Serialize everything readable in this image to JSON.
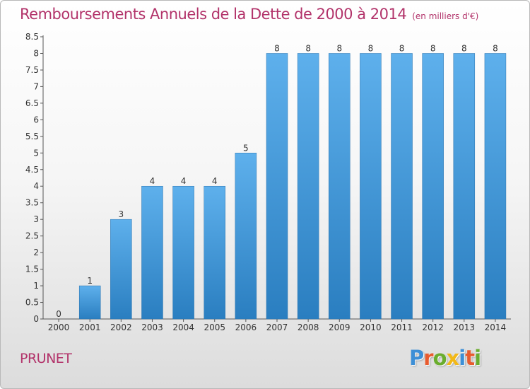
{
  "header": {
    "title": "Remboursements Annuels de la Dette de 2000 à 2014",
    "unit": "(en milliers d'€)"
  },
  "footer": {
    "commune": "PRUNET",
    "logo": {
      "letters": [
        "P",
        "r",
        "o",
        "x",
        "i",
        "t",
        "i"
      ],
      "colors": [
        "#3d8fd6",
        "#e85b2e",
        "#6aad2e",
        "#f2b817",
        "#3d8fd6",
        "#e85b2e",
        "#6aad2e"
      ]
    }
  },
  "colors": {
    "bar_light": "#5eb0ec",
    "bar_dark": "#2a7ec0",
    "axis": "#555555",
    "grid": "#cccccc"
  },
  "chart_data": {
    "type": "bar",
    "title": "Remboursements Annuels de la Dette de 2000 à 2014",
    "subtitle": "(en milliers d'€)",
    "xlabel": "",
    "ylabel": "",
    "categories": [
      "2000",
      "2001",
      "2002",
      "2003",
      "2004",
      "2005",
      "2006",
      "2007",
      "2008",
      "2009",
      "2010",
      "2011",
      "2012",
      "2013",
      "2014"
    ],
    "values": [
      0,
      1,
      3,
      4,
      4,
      4,
      5,
      8,
      8,
      8,
      8,
      8,
      8,
      8,
      8
    ],
    "data_labels": [
      "0",
      "1",
      "3",
      "4",
      "4",
      "4",
      "5",
      "8",
      "8",
      "8",
      "8",
      "8",
      "8",
      "8",
      "8"
    ],
    "ylim": [
      0,
      8.5
    ],
    "yticks": [
      0,
      0.5,
      1,
      1.5,
      2,
      2.5,
      3,
      3.5,
      4,
      4.5,
      5,
      5.5,
      6,
      6.5,
      7,
      7.5,
      8,
      8.5
    ],
    "ytick_labels": [
      "0",
      "0.5",
      "1",
      "1.5",
      "2",
      "2.5",
      "3",
      "3.5",
      "4",
      "4.5",
      "5",
      "5.5",
      "6",
      "6.5",
      "7",
      "7.5",
      "8",
      "8.5"
    ],
    "grid": false,
    "legend": "none"
  }
}
